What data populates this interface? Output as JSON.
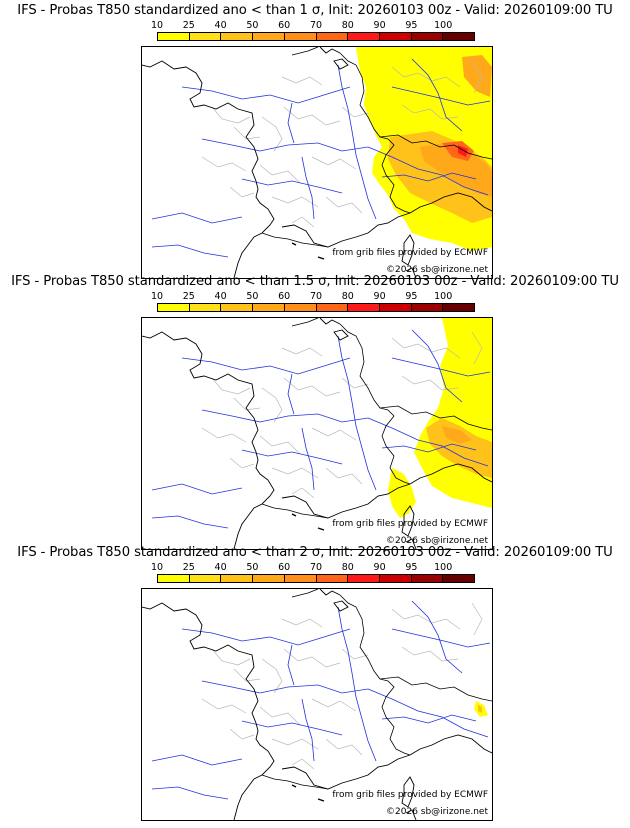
{
  "colorbar": {
    "ticks": [
      "10",
      "25",
      "40",
      "50",
      "60",
      "70",
      "80",
      "90",
      "95",
      "100"
    ],
    "colors": [
      "#ffff00",
      "#ffe11a",
      "#ffc21a",
      "#ffa91a",
      "#ff8f1a",
      "#ff661a",
      "#ff1a1a",
      "#cc0000",
      "#990000",
      "#660000"
    ]
  },
  "credits": {
    "source": "from grib files provided by ECMWF",
    "copyright": "©2026 sb@irizone.net"
  },
  "panels": [
    {
      "title": "IFS - Probas T850  standardized ano < than 1 σ, Init: 20260103 00z - Valid: 20260109:00 TU",
      "coverage": "large"
    },
    {
      "title": "IFS - Probas T850  standardized ano < than 1.5 σ, Init: 20260103 00z - Valid: 20260109:00 TU",
      "coverage": "medium"
    },
    {
      "title": "IFS - Probas T850  standardized ano < than 2 σ, Init: 20260103 00z - Valid: 20260109:00 TU",
      "coverage": "small"
    }
  ]
}
